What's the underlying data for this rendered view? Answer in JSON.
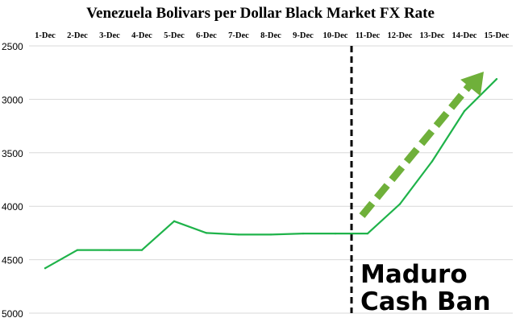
{
  "chart_data": {
    "type": "line",
    "title": "Venezuela Bolivars per Dollar Black Market FX Rate",
    "xlabel": "",
    "ylabel": "",
    "categories": [
      "1-Dec",
      "2-Dec",
      "3-Dec",
      "4-Dec",
      "5-Dec",
      "6-Dec",
      "7-Dec",
      "8-Dec",
      "9-Dec",
      "10-Dec",
      "11-Dec",
      "12-Dec",
      "13-Dec",
      "14-Dec",
      "15-Dec"
    ],
    "x_axis_position": "top",
    "y_axis_inverted": true,
    "ylim": [
      2500,
      5000
    ],
    "yticks": [
      "2500",
      "3000",
      "3500",
      "4000",
      "4500",
      "5000"
    ],
    "grid": true,
    "series": [
      {
        "values": [
          4580,
          4410,
          4410,
          4410,
          4140,
          4250,
          4265,
          4265,
          4255,
          4255,
          4255,
          3980,
          3580,
          3110,
          2810
        ],
        "color": "#1fb34a"
      }
    ],
    "event_marker": {
      "category": "11-Dec",
      "style": "dashed",
      "color": "#000000"
    },
    "annotations": [
      {
        "line1": "Maduro",
        "line2": "Cash Ban"
      }
    ],
    "trend_arrow": {
      "color": "#6fb03a",
      "style": "dashed"
    }
  }
}
